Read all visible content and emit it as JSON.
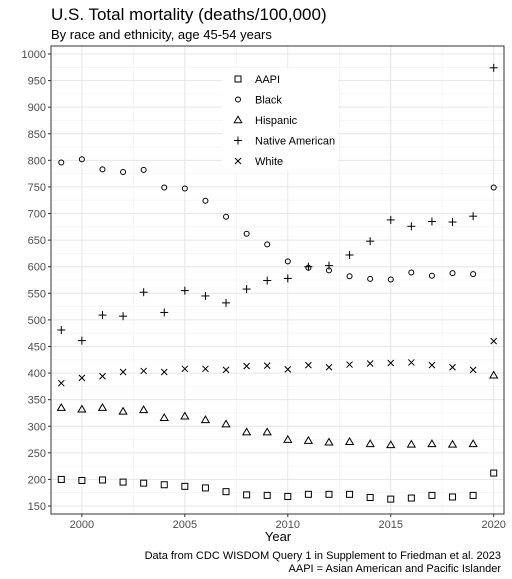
{
  "chart_data": {
    "type": "scatter",
    "title": "U.S. Total mortality (deaths/100,000)",
    "subtitle": "By race and ethnicity, age 45-54 years",
    "xlabel": "Year",
    "ylabel": "",
    "xlim": [
      1998.5,
      2020.5
    ],
    "ylim": [
      135,
      1015
    ],
    "x_ticks": [
      2000,
      2005,
      2010,
      2015,
      2020
    ],
    "y_ticks": [
      150,
      200,
      250,
      300,
      350,
      400,
      450,
      500,
      550,
      600,
      650,
      700,
      750,
      800,
      850,
      900,
      950,
      1000
    ],
    "grid": true,
    "legend_position": "top-center",
    "caption_lines": [
      "Data from CDC WISDOM Query 1 in Supplement to Friedman et al. 2023",
      "AAPI = Asian American and Pacific Islander"
    ],
    "x": [
      1999,
      2000,
      2001,
      2002,
      2003,
      2004,
      2005,
      2006,
      2007,
      2008,
      2009,
      2010,
      2011,
      2012,
      2013,
      2014,
      2015,
      2016,
      2017,
      2018,
      2019,
      2020
    ],
    "series": [
      {
        "name": "AAPI",
        "marker": "square",
        "values": [
          200,
          198,
          199,
          195,
          193,
          190,
          187,
          184,
          177,
          171,
          170,
          168,
          172,
          172,
          172,
          166,
          163,
          165,
          170,
          167,
          170,
          212
        ]
      },
      {
        "name": "Black",
        "marker": "circle",
        "values": [
          796,
          802,
          783,
          778,
          782,
          749,
          747,
          724,
          694,
          662,
          642,
          610,
          598,
          593,
          582,
          577,
          576,
          589,
          583,
          588,
          586,
          749
        ]
      },
      {
        "name": "Hispanic",
        "marker": "triangle",
        "values": [
          335,
          332,
          335,
          328,
          331,
          316,
          319,
          312,
          304,
          289,
          289,
          275,
          273,
          270,
          271,
          267,
          265,
          266,
          267,
          266,
          267,
          396
        ]
      },
      {
        "name": "Native American",
        "marker": "plus",
        "values": [
          481,
          461,
          509,
          507,
          552,
          514,
          555,
          545,
          532,
          558,
          574,
          578,
          600,
          602,
          622,
          648,
          688,
          676,
          685,
          684,
          695,
          974
        ]
      },
      {
        "name": "White",
        "marker": "x",
        "values": [
          381,
          391,
          394,
          402,
          404,
          402,
          408,
          408,
          406,
          413,
          414,
          407,
          415,
          411,
          416,
          418,
          419,
          420,
          415,
          411,
          406,
          460
        ]
      }
    ]
  }
}
